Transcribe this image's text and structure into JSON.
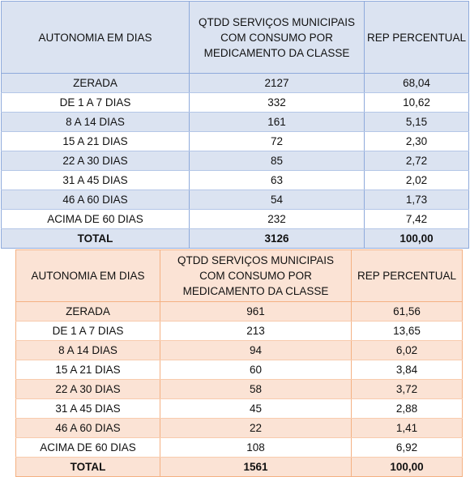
{
  "table1": {
    "headers": [
      "AUTONOMIA EM DIAS",
      "QTDD SERVIÇOS MUNICIPAIS COM CONSUMO POR MEDICAMENTO DA CLASSE",
      "REP PERCENTUAL"
    ],
    "rows": [
      [
        "ZERADA",
        "2127",
        "68,04"
      ],
      [
        "DE 1 A 7 DIAS",
        "332",
        "10,62"
      ],
      [
        "8 A 14 DIAS",
        "161",
        "5,15"
      ],
      [
        "15 A 21 DIAS",
        "72",
        "2,30"
      ],
      [
        "22 A 30 DIAS",
        "85",
        "2,72"
      ],
      [
        "31 A 45 DIAS",
        "63",
        "2,02"
      ],
      [
        "46 A 60 DIAS",
        "54",
        "1,73"
      ],
      [
        "ACIMA DE 60 DIAS",
        "232",
        "7,42"
      ],
      [
        "TOTAL",
        "3126",
        "100,00"
      ]
    ],
    "colors": {
      "header_bg": "#dbe3f1",
      "band": "#dbe3f1",
      "border": "#8eaadb"
    }
  },
  "table2": {
    "headers": [
      "AUTONOMIA EM DIAS",
      "QTDD SERVIÇOS MUNICIPAIS COM CONSUMO POR MEDICAMENTO DA CLASSE",
      "REP PERCENTUAL"
    ],
    "rows": [
      [
        "ZERADA",
        "961",
        "61,56"
      ],
      [
        "DE 1 A 7 DIAS",
        "213",
        "13,65"
      ],
      [
        "8 A 14 DIAS",
        "94",
        "6,02"
      ],
      [
        "15 A 21 DIAS",
        "60",
        "3,84"
      ],
      [
        "22 A 30 DIAS",
        "58",
        "3,72"
      ],
      [
        "31 A 45 DIAS",
        "45",
        "2,88"
      ],
      [
        "46 A 60 DIAS",
        "22",
        "1,41"
      ],
      [
        "ACIMA DE 60 DIAS",
        "108",
        "6,92"
      ],
      [
        "TOTAL",
        "1561",
        "100,00"
      ]
    ],
    "colors": {
      "header_bg": "#fbe3d5",
      "band": "#fbe3d5",
      "border": "#f4b183"
    }
  }
}
